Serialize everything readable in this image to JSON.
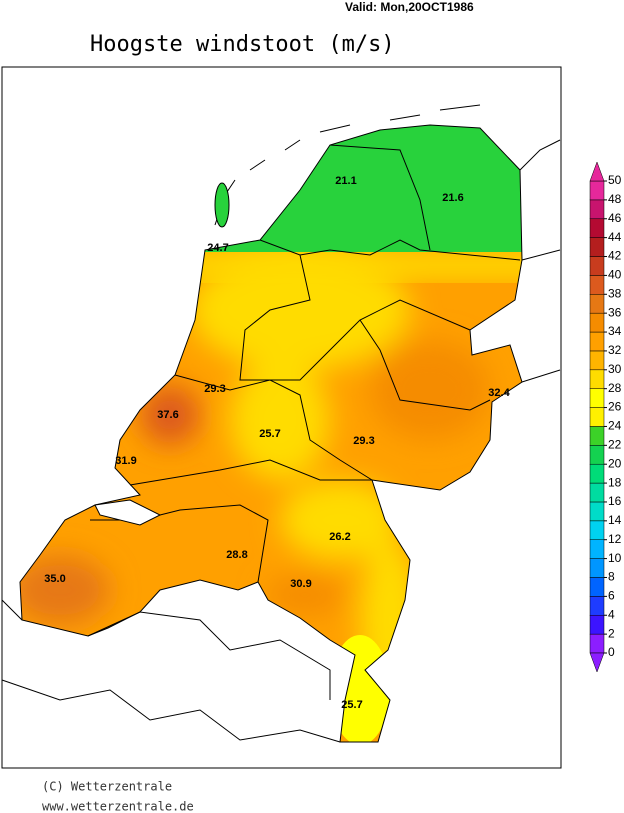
{
  "header": {
    "valid": "Valid:  Mon,20OCT1986",
    "title": "Hoogste windstoot (m/s)"
  },
  "stations": [
    "21.1",
    "21.6",
    "24.7",
    "29.3",
    "37.6",
    "25.7",
    "29.3",
    "32.4",
    "31.9",
    "26.2",
    "28.8",
    "30.9",
    "35.0",
    "25.7"
  ],
  "legend": {
    "ticks": [
      0,
      2,
      4,
      6,
      8,
      10,
      12,
      14,
      16,
      18,
      20,
      22,
      24,
      26,
      28,
      30,
      32,
      34,
      36,
      38,
      40,
      42,
      44,
      46,
      48,
      50
    ],
    "colors": [
      "#8c1eff",
      "#3c14ff",
      "#1e3cff",
      "#0064ff",
      "#0096ff",
      "#00b4ff",
      "#00d2f0",
      "#00dcc8",
      "#00dca0",
      "#00dc78",
      "#14d250",
      "#3cd228",
      "#fff000",
      "#ffff00",
      "#ffdc00",
      "#ffb400",
      "#ffa000",
      "#f58c00",
      "#e67814",
      "#dc5a1e",
      "#c83c1e",
      "#b41e1e",
      "#b40a32",
      "#c8146e",
      "#e6289b"
    ]
  },
  "footer": {
    "copyright": "(C) Wetterzentrale",
    "url": "www.wetterzentrale.de"
  }
}
